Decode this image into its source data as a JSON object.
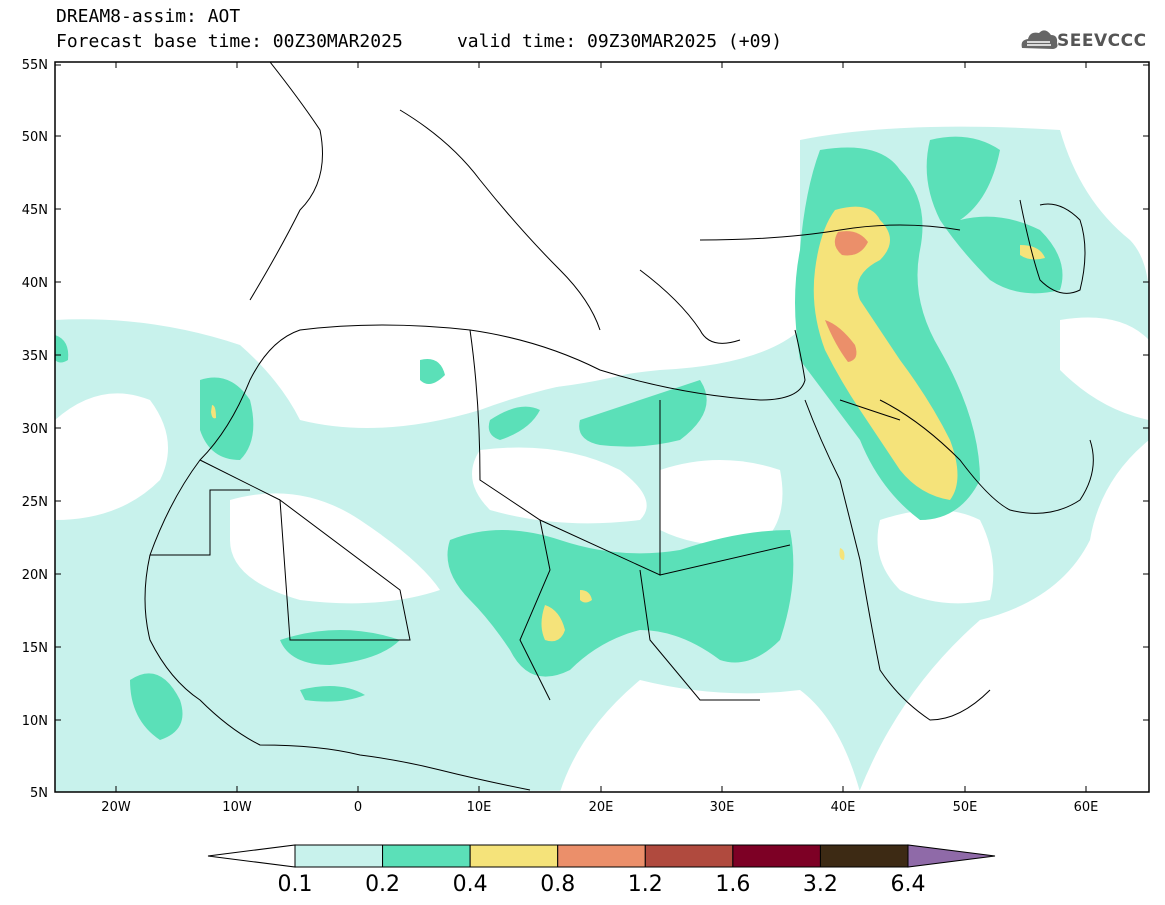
{
  "header": {
    "title_line1": "DREAM8-assim: AOT",
    "title_line2": "Forecast base time: 00Z30MAR2025     valid time: 09Z30MAR2025 (+09)",
    "logo_text": "SEEVCCC"
  },
  "axes": {
    "lat_labels": [
      "55N",
      "50N",
      "45N",
      "40N",
      "35N",
      "30N",
      "25N",
      "20N",
      "15N",
      "10N",
      "5N"
    ],
    "lon_labels": [
      "20W",
      "10W",
      "0",
      "10E",
      "20E",
      "30E",
      "40E",
      "50E",
      "60E"
    ]
  },
  "colorbar": {
    "levels": [
      "0.1",
      "0.2",
      "0.4",
      "0.8",
      "1.2",
      "1.6",
      "3.2",
      "6.4"
    ],
    "colors": [
      "#c8f2ec",
      "#5be0b8",
      "#f5e37a",
      "#eb8f6a",
      "#b04a3e",
      "#7d0025",
      "#3d2a14"
    ],
    "over_color": "#8f6aa8",
    "under_color": "#ffffff"
  }
}
